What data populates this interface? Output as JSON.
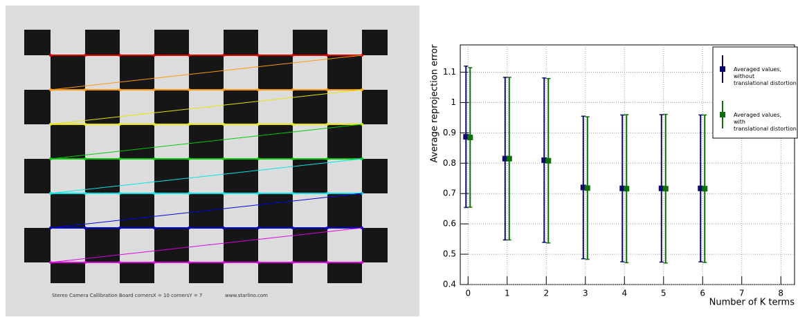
{
  "board": {
    "caption": "Stereo Camera Callibration Board cornersX = 10  cornersY = 7",
    "url": "www.starlino.com"
  },
  "chart_data": {
    "type": "errorbar",
    "y_label": "Average reprojection error",
    "x_label": "Number of K terms",
    "xlim": [
      -0.2,
      8.35
    ],
    "xticks": [
      0,
      1,
      2,
      3,
      4,
      5,
      6,
      7,
      8
    ],
    "ylim": [
      0.4,
      1.19
    ],
    "yticks": [
      0.4,
      0.5,
      0.6,
      0.7,
      0.8,
      0.9,
      1.0,
      1.1
    ],
    "grid": true,
    "legend": "upper right",
    "series": [
      {
        "name": "Averaged values,\nwithout\ntranslational distortion",
        "color": "#0a0a66",
        "x": [
          0,
          1,
          2,
          3,
          4,
          5,
          6
        ],
        "values": [
          0.887,
          0.815,
          0.81,
          0.72,
          0.717,
          0.717,
          0.717
        ],
        "errors": [
          0.233,
          0.268,
          0.271,
          0.235,
          0.242,
          0.243,
          0.242
        ]
      },
      {
        "name": "Averaged values,\nwith\ntranslational distortion",
        "color": "#0b6e0b",
        "x": [
          0,
          1,
          2,
          3,
          4,
          5,
          6
        ],
        "values": [
          0.885,
          0.815,
          0.808,
          0.718,
          0.716,
          0.716,
          0.716
        ],
        "errors": [
          0.23,
          0.268,
          0.271,
          0.235,
          0.244,
          0.245,
          0.243
        ]
      }
    ]
  }
}
